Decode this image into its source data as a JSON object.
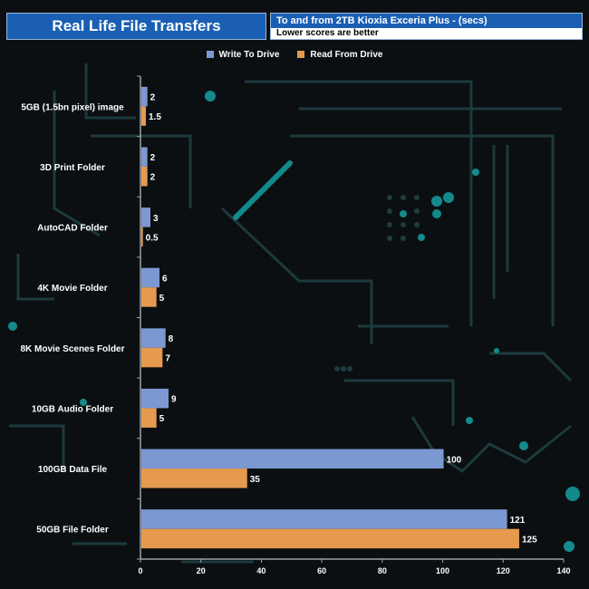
{
  "header": {
    "title": "Real Life File Transfers",
    "subtitle": "To and from 2TB Kioxia Exceria Plus - (secs)",
    "note": "Lower scores are better"
  },
  "colors": {
    "write": "#7b98d2",
    "read": "#e69a4e",
    "title_bg": "#1a5fb4",
    "axis": "#9aa2a8",
    "text": "#ffffff"
  },
  "chart_data": {
    "type": "bar",
    "orientation": "horizontal",
    "categories": [
      "5GB (1.5bn pixel) image",
      "3D Print Folder",
      "AutoCAD Folder",
      "4K Movie Folder",
      "8K Movie Scenes Folder",
      "10GB Audio Folder",
      "100GB Data File",
      "50GB File Folder"
    ],
    "series": [
      {
        "name": "Write To  Drive",
        "values": [
          2,
          2,
          3,
          6,
          8,
          9,
          100,
          121
        ]
      },
      {
        "name": "Read From  Drive",
        "values": [
          1.5,
          2,
          0.5,
          5,
          7,
          5,
          35,
          125
        ]
      }
    ],
    "xlim": [
      0,
      140
    ],
    "xticks": [
      0,
      20,
      40,
      60,
      80,
      100,
      120,
      140
    ],
    "legend_position": "top-center",
    "grid": false
  }
}
